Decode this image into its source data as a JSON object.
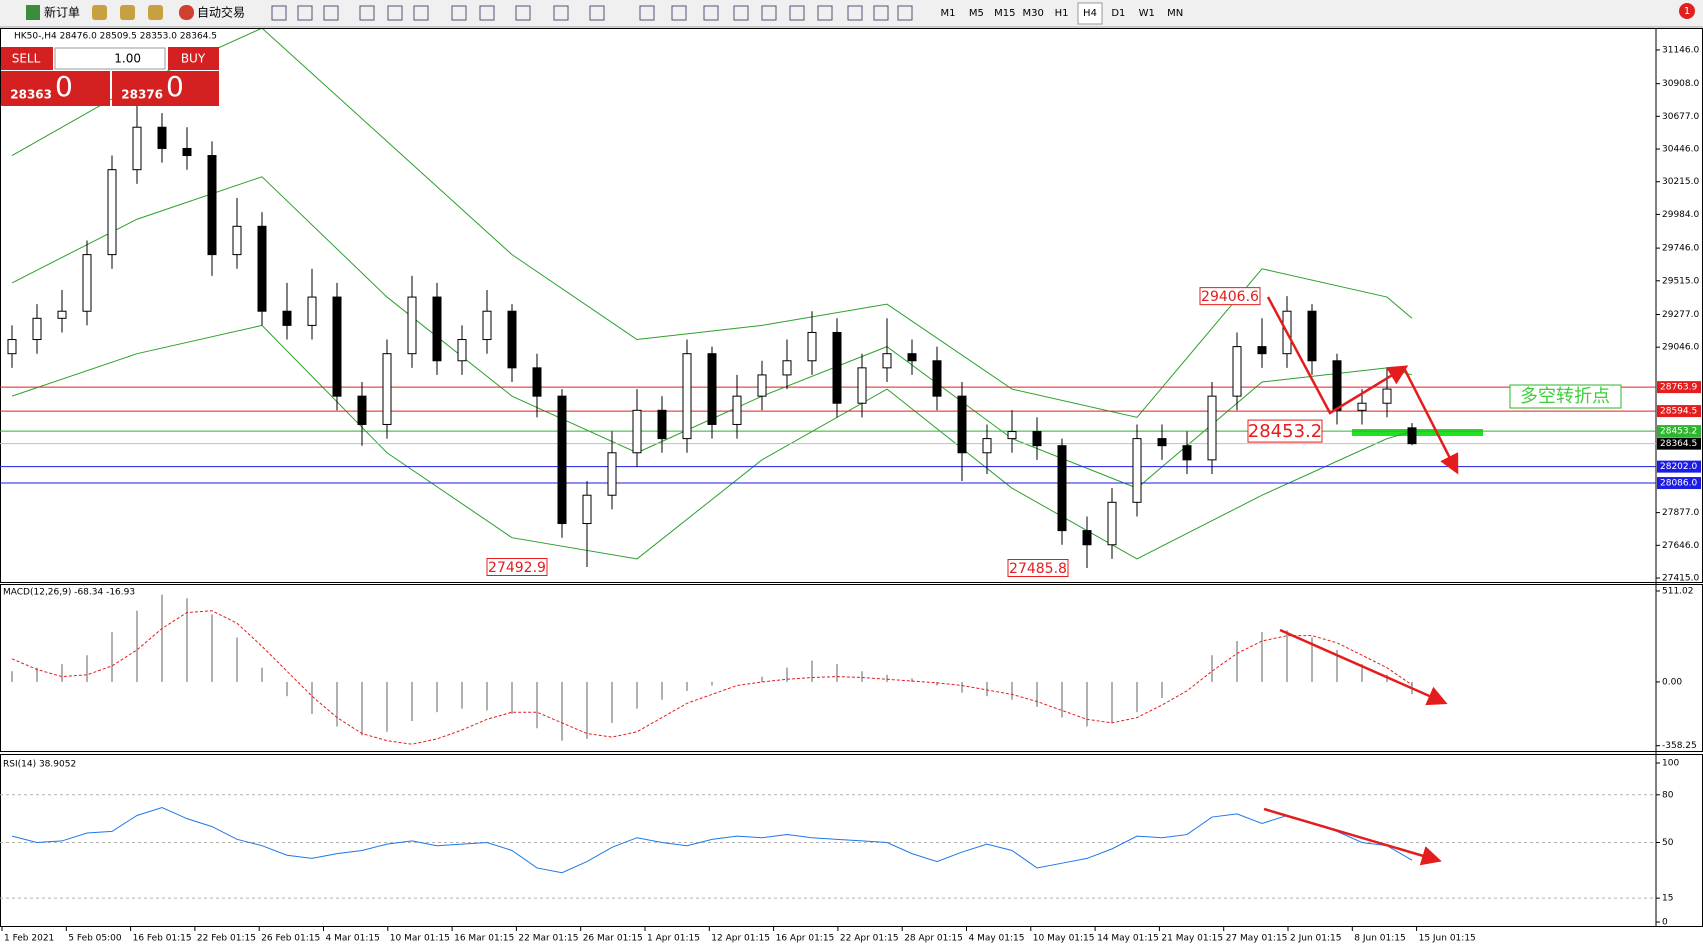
{
  "toolbar": {
    "new_order": "新订单",
    "auto_trading": "自动交易",
    "timeframes": [
      "M1",
      "M5",
      "M15",
      "M30",
      "H1",
      "H4",
      "D1",
      "W1",
      "MN"
    ],
    "active_timeframe": "H4",
    "notification": "1"
  },
  "trade_panel": {
    "sell": "SELL",
    "buy": "BUY",
    "volume": "1.00",
    "sell_price": "28363",
    "sell_pips": "0",
    "buy_price": "28376",
    "buy_pips": "0"
  },
  "price_chart": {
    "type": "candlestick",
    "header": "HK50-,H4  28476.0 28509.5 28353.0 28364.5",
    "ylim": [
      27394,
      31294
    ],
    "yticks": [
      {
        "value": 31146,
        "label": "31146.0"
      },
      {
        "value": 30908,
        "label": "30908.0"
      },
      {
        "value": 30677,
        "label": "30677.0"
      },
      {
        "value": 30446,
        "label": "30446.0"
      },
      {
        "value": 30215,
        "label": "30215.0"
      },
      {
        "value": 29984,
        "label": "29984.0"
      },
      {
        "value": 29746,
        "label": "29746.0"
      },
      {
        "value": 29515,
        "label": "29515.0"
      },
      {
        "value": 29277,
        "label": "29277.0"
      },
      {
        "value": 29046,
        "label": "29046.0"
      },
      {
        "value": 27877,
        "label": "27877.0"
      },
      {
        "value": 27646,
        "label": "27646.0"
      },
      {
        "value": 27415,
        "label": "27415.0"
      }
    ],
    "open": [
      29000,
      29100,
      29250,
      29300,
      29700,
      30300,
      30600,
      30450,
      30400,
      29700,
      29900,
      29300,
      29200,
      29400,
      28700,
      28500,
      29000,
      29400,
      28950,
      29100,
      29300,
      28900,
      28700,
      27800,
      28000,
      28300,
      28600,
      28400,
      29000,
      28500,
      28700,
      28850,
      28950,
      29150,
      28650,
      28900,
      29000,
      28950,
      28700,
      28300,
      28400,
      28450,
      28350,
      27750,
      27650,
      27950,
      28400,
      28350,
      28250,
      28700,
      29050,
      29000,
      29300,
      28950,
      28600,
      28650,
      28476
    ],
    "high": [
      29200,
      29350,
      29450,
      29800,
      30400,
      30800,
      30700,
      30600,
      30500,
      30100,
      30000,
      29500,
      29600,
      29500,
      28800,
      29100,
      29550,
      29500,
      29200,
      29450,
      29350,
      29000,
      28750,
      28100,
      28450,
      28750,
      28700,
      29100,
      29050,
      28850,
      28950,
      29100,
      29300,
      29250,
      29000,
      29250,
      29100,
      29050,
      28800,
      28500,
      28600,
      28550,
      28400,
      27850,
      28050,
      28500,
      28500,
      28450,
      28800,
      29150,
      29250,
      29406.6,
      29350,
      29000,
      28750,
      28900,
      28509.5
    ],
    "low": [
      28900,
      29000,
      29150,
      29200,
      29600,
      30200,
      30350,
      30300,
      29550,
      29600,
      29200,
      29100,
      29100,
      28600,
      28350,
      28400,
      28900,
      28850,
      28850,
      29000,
      28800,
      28550,
      27700,
      27492.9,
      27900,
      28200,
      28300,
      28300,
      28400,
      28400,
      28600,
      28750,
      28850,
      28550,
      28550,
      28800,
      28850,
      28600,
      28100,
      28150,
      28300,
      28250,
      27650,
      27485.8,
      27550,
      27850,
      28250,
      28150,
      28150,
      28600,
      28900,
      28900,
      28850,
      28500,
      28500,
      28550,
      28353
    ],
    "close": [
      29100,
      29250,
      29300,
      29700,
      30300,
      30600,
      30450,
      30400,
      29700,
      29900,
      29300,
      29200,
      29400,
      28700,
      28500,
      29000,
      29400,
      28950,
      29100,
      29300,
      28900,
      28700,
      27800,
      28000,
      28300,
      28600,
      28400,
      29000,
      28500,
      28700,
      28850,
      28950,
      29150,
      28650,
      28900,
      29000,
      28950,
      28700,
      28300,
      28400,
      28450,
      28350,
      27750,
      27650,
      27950,
      28400,
      28350,
      28250,
      28700,
      29050,
      29000,
      29300,
      28950,
      28600,
      28650,
      28750,
      28364.5
    ],
    "bands": {
      "color": "#2ca02c",
      "x": [
        0,
        5,
        10,
        15,
        20,
        25,
        30,
        35,
        40,
        45,
        50,
        55,
        56
      ],
      "upper": [
        30400,
        30900,
        31300,
        30500,
        29700,
        29100,
        29200,
        29350,
        28750,
        28550,
        29600,
        29400,
        29250
      ],
      "middle": [
        29500,
        29950,
        30250,
        29400,
        28700,
        28300,
        28700,
        29050,
        28400,
        28050,
        28800,
        28900,
        28850
      ],
      "lower": [
        28700,
        29000,
        29200,
        28300,
        27700,
        27550,
        28250,
        28750,
        28050,
        27550,
        28000,
        28400,
        28450
      ]
    },
    "levels": [
      {
        "value": 28763.9,
        "color": "#e51c1c"
      },
      {
        "value": 28594.5,
        "color": "#e51c1c"
      },
      {
        "value": 28453.2,
        "color": "#2db52d"
      },
      {
        "value": 28364.5,
        "color": "#000000"
      },
      {
        "value": 28202,
        "label": "28202.0",
        "color": "#1c1ce5"
      },
      {
        "value": 28086,
        "label": "28086.0",
        "color": "#1c1ce5"
      }
    ],
    "annotations": [
      29406.6,
      27492.9,
      27485.8,
      28453.2
    ],
    "note": "多空转折点"
  },
  "macd": {
    "type": "macd",
    "header": "MACD(12,26,9) -68.34 -16.93",
    "ylim": [
      -388,
      539
    ],
    "yticks": [
      511.02,
      {
        "value": 0,
        "label": "0.00"
      },
      -358.25
    ],
    "histogram": [
      60,
      80,
      100,
      150,
      280,
      400,
      490,
      470,
      380,
      250,
      80,
      -80,
      -180,
      -250,
      -300,
      -280,
      -220,
      -170,
      -150,
      -160,
      -180,
      -260,
      -330,
      -320,
      -230,
      -150,
      -100,
      -50,
      -20,
      0,
      30,
      80,
      120,
      100,
      60,
      40,
      20,
      -20,
      -60,
      -80,
      -100,
      -140,
      -200,
      -250,
      -230,
      -170,
      -90,
      0,
      150,
      230,
      280,
      290,
      250,
      180,
      100,
      40,
      -68.34
    ],
    "signal": [
      130,
      70,
      30,
      40,
      90,
      180,
      300,
      390,
      400,
      330,
      200,
      60,
      -80,
      -200,
      -290,
      -330,
      -350,
      -320,
      -270,
      -210,
      -170,
      -170,
      -230,
      -290,
      -310,
      -280,
      -200,
      -120,
      -70,
      -20,
      0,
      15,
      25,
      30,
      25,
      15,
      5,
      -5,
      -20,
      -45,
      -70,
      -110,
      -160,
      -210,
      -230,
      -200,
      -130,
      -50,
      60,
      160,
      230,
      260,
      260,
      220,
      150,
      80,
      -16.93
    ]
  },
  "rsi": {
    "type": "line",
    "header": "RSI(14) 38.9052",
    "ylim": [
      -2.5,
      104.4
    ],
    "yticks": [
      100,
      80,
      50,
      15,
      0
    ],
    "levels": [
      80,
      50,
      15
    ],
    "color": "#1e78e6",
    "values": [
      54,
      50,
      51,
      56,
      57,
      67,
      72,
      65,
      60,
      52,
      48,
      42,
      40,
      43,
      45,
      49,
      51,
      48,
      49,
      50,
      45,
      34,
      31,
      38,
      47,
      53,
      50,
      48,
      52,
      54,
      53,
      55,
      53,
      52,
      51,
      50,
      43,
      38,
      44,
      49,
      45,
      34,
      37,
      40,
      46,
      54,
      53,
      55,
      66,
      68,
      62,
      67,
      62,
      57,
      50,
      48,
      38.9052
    ]
  },
  "time_axis": [
    "1 Feb 2021",
    "5 Feb 05:00",
    "16 Feb 01:15",
    "22 Feb 01:15",
    "26 Feb 01:15",
    "4 Mar 01:15",
    "10 Mar 01:15",
    "16 Mar 01:15",
    "22 Mar 01:15",
    "26 Mar 01:15",
    "1 Apr 01:15",
    "12 Apr 01:15",
    "16 Apr 01:15",
    "22 Apr 01:15",
    "28 Apr 01:15",
    "4 May 01:15",
    "10 May 01:15",
    "14 May 01:15",
    "21 May 01:15",
    "27 May 01:15",
    "2 Jun 01:15",
    "8 Jun 01:15",
    "15 Jun 01:15"
  ]
}
